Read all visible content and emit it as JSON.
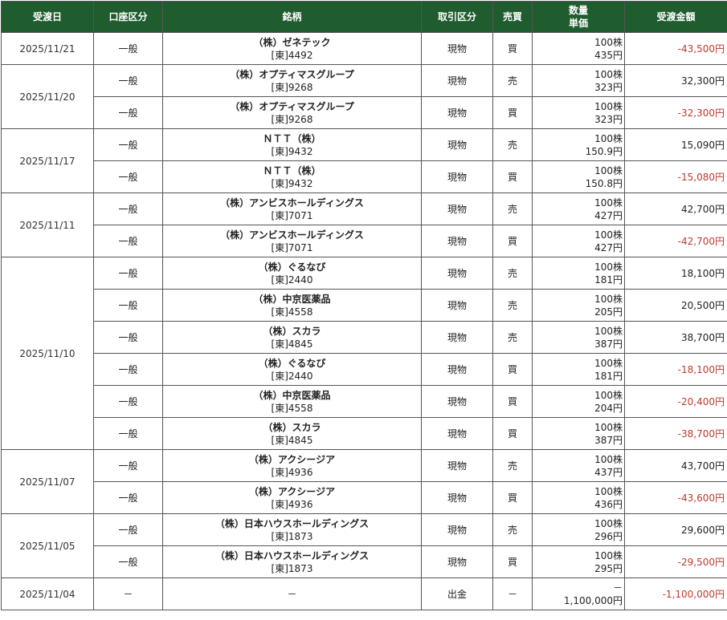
{
  "headers": {
    "date": "受渡日",
    "account": "口座区分",
    "stock": "銘柄",
    "trade_type": "取引区分",
    "side": "売買",
    "qty": "数量",
    "price": "単価",
    "amount": "受渡金額"
  },
  "groups": [
    {
      "date": "2025/11/21",
      "rows": [
        {
          "account": "一般",
          "name": "（株）ゼネテック",
          "code": "[東]4492",
          "trade_type": "現物",
          "side": "買",
          "qty": "100株",
          "price": "435円",
          "amount": "-43,500円",
          "negative": true
        }
      ]
    },
    {
      "date": "2025/11/20",
      "rows": [
        {
          "account": "一般",
          "name": "（株）オプティマスグループ",
          "code": "[東]9268",
          "trade_type": "現物",
          "side": "売",
          "qty": "100株",
          "price": "323円",
          "amount": "32,300円",
          "negative": false
        },
        {
          "account": "一般",
          "name": "（株）オプティマスグループ",
          "code": "[東]9268",
          "trade_type": "現物",
          "side": "買",
          "qty": "100株",
          "price": "323円",
          "amount": "-32,300円",
          "negative": true
        }
      ]
    },
    {
      "date": "2025/11/17",
      "rows": [
        {
          "account": "一般",
          "name": "ＮＴＴ（株）",
          "code": "[東]9432",
          "trade_type": "現物",
          "side": "売",
          "qty": "100株",
          "price": "150.9円",
          "amount": "15,090円",
          "negative": false
        },
        {
          "account": "一般",
          "name": "ＮＴＴ（株）",
          "code": "[東]9432",
          "trade_type": "現物",
          "side": "買",
          "qty": "100株",
          "price": "150.8円",
          "amount": "-15,080円",
          "negative": true
        }
      ]
    },
    {
      "date": "2025/11/11",
      "rows": [
        {
          "account": "一般",
          "name": "（株）アンビスホールディングス",
          "code": "[東]7071",
          "trade_type": "現物",
          "side": "売",
          "qty": "100株",
          "price": "427円",
          "amount": "42,700円",
          "negative": false
        },
        {
          "account": "一般",
          "name": "（株）アンビスホールディングス",
          "code": "[東]7071",
          "trade_type": "現物",
          "side": "買",
          "qty": "100株",
          "price": "427円",
          "amount": "-42,700円",
          "negative": true
        }
      ]
    },
    {
      "date": "2025/11/10",
      "rows": [
        {
          "account": "一般",
          "name": "（株）ぐるなび",
          "code": "[東]2440",
          "trade_type": "現物",
          "side": "売",
          "qty": "100株",
          "price": "181円",
          "amount": "18,100円",
          "negative": false
        },
        {
          "account": "一般",
          "name": "（株）中京医薬品",
          "code": "[東]4558",
          "trade_type": "現物",
          "side": "売",
          "qty": "100株",
          "price": "205円",
          "amount": "20,500円",
          "negative": false
        },
        {
          "account": "一般",
          "name": "（株）スカラ",
          "code": "[東]4845",
          "trade_type": "現物",
          "side": "売",
          "qty": "100株",
          "price": "387円",
          "amount": "38,700円",
          "negative": false
        },
        {
          "account": "一般",
          "name": "（株）ぐるなび",
          "code": "[東]2440",
          "trade_type": "現物",
          "side": "買",
          "qty": "100株",
          "price": "181円",
          "amount": "-18,100円",
          "negative": true
        },
        {
          "account": "一般",
          "name": "（株）中京医薬品",
          "code": "[東]4558",
          "trade_type": "現物",
          "side": "買",
          "qty": "100株",
          "price": "204円",
          "amount": "-20,400円",
          "negative": true
        },
        {
          "account": "一般",
          "name": "（株）スカラ",
          "code": "[東]4845",
          "trade_type": "現物",
          "side": "買",
          "qty": "100株",
          "price": "387円",
          "amount": "-38,700円",
          "negative": true
        }
      ]
    },
    {
      "date": "2025/11/07",
      "rows": [
        {
          "account": "一般",
          "name": "（株）アクシージア",
          "code": "[東]4936",
          "trade_type": "現物",
          "side": "売",
          "qty": "100株",
          "price": "437円",
          "amount": "43,700円",
          "negative": false
        },
        {
          "account": "一般",
          "name": "（株）アクシージア",
          "code": "[東]4936",
          "trade_type": "現物",
          "side": "買",
          "qty": "100株",
          "price": "436円",
          "amount": "-43,600円",
          "negative": true
        }
      ]
    },
    {
      "date": "2025/11/05",
      "rows": [
        {
          "account": "一般",
          "name": "（株）日本ハウスホールディングス",
          "code": "[東]1873",
          "trade_type": "現物",
          "side": "売",
          "qty": "100株",
          "price": "296円",
          "amount": "29,600円",
          "negative": false
        },
        {
          "account": "一般",
          "name": "（株）日本ハウスホールディングス",
          "code": "[東]1873",
          "trade_type": "現物",
          "side": "買",
          "qty": "100株",
          "price": "295円",
          "amount": "-29,500円",
          "negative": true
        }
      ]
    },
    {
      "date": "2025/11/04",
      "rows": [
        {
          "account": "－",
          "name": "",
          "code": "－",
          "trade_type": "出金",
          "side": "－",
          "qty": "－",
          "price": "1,100,000円",
          "amount": "-1,100,000円",
          "negative": true
        }
      ]
    }
  ],
  "colors": {
    "header_bg": "#1f5c2e",
    "negative": "#c0392b"
  }
}
